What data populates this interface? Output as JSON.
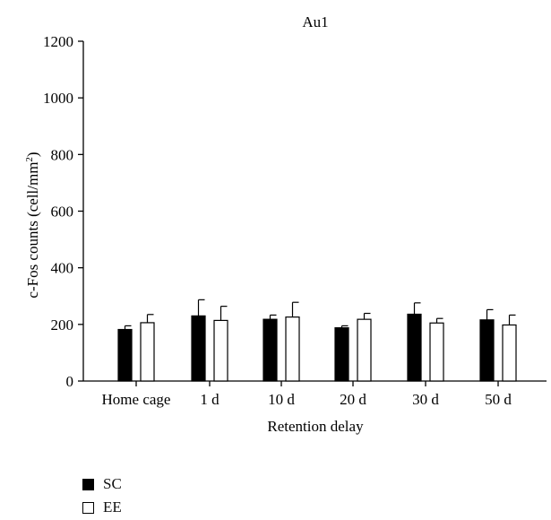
{
  "chart_data": {
    "type": "bar",
    "title": "Au1",
    "xlabel": "Retention delay",
    "ylabel_main": "c-Fos counts (cell/mm",
    "ylabel_sup": "2",
    "ylabel_end": ")",
    "ylim": [
      0,
      1200
    ],
    "yticks": [
      0,
      200,
      400,
      600,
      800,
      1000,
      1200
    ],
    "categories": [
      "Home cage",
      "1 d",
      "10 d",
      "20 d",
      "30 d",
      "50 d"
    ],
    "series": [
      {
        "name": "SC",
        "color": "#000000",
        "values": [
          182,
          230,
          218,
          188,
          236,
          216
        ],
        "errors": [
          13,
          57,
          15,
          7,
          40,
          36
        ]
      },
      {
        "name": "EE",
        "color": "#ffffff",
        "values": [
          206,
          214,
          226,
          218,
          205,
          198
        ],
        "errors": [
          29,
          50,
          52,
          21,
          16,
          35
        ]
      }
    ],
    "grid": false,
    "legend_position": "bottom-left"
  },
  "legend": {
    "items": [
      {
        "label": "SC",
        "color": "#000000"
      },
      {
        "label": "EE",
        "color": "#ffffff"
      }
    ]
  }
}
